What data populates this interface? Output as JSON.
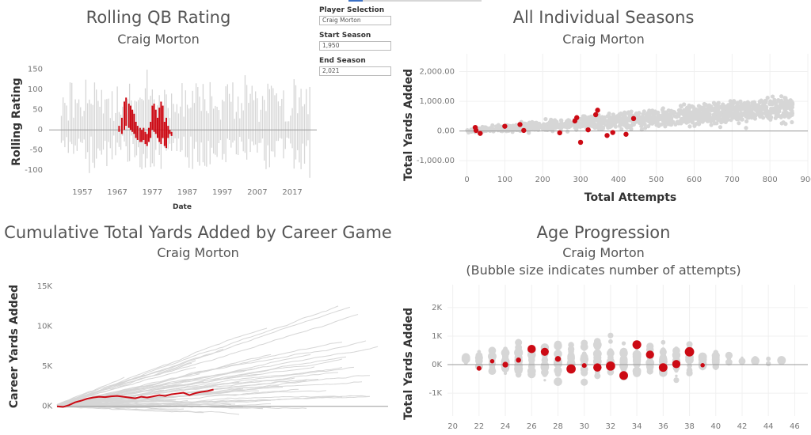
{
  "controls": {
    "player_label": "Player Selection",
    "player_value": "Craig Morton",
    "start_label": "Start Season",
    "start_value": "1,950",
    "end_label": "End Season",
    "end_value": "2,021"
  },
  "colors": {
    "highlight": "#cc0a14",
    "background_series": "#d6d6d6",
    "zero_line": "#999999"
  },
  "chart_data": [
    {
      "type": "line",
      "title": "Rolling QB Rating",
      "subtitle": "Craig Morton",
      "xlabel": "Date",
      "ylabel": "Rolling Rating",
      "xticks": [
        "1957",
        "1967",
        "1977",
        "1987",
        "1997",
        "2007",
        "2017"
      ],
      "yticks": [
        "150",
        "100",
        "50",
        "0",
        "-50",
        "-100"
      ],
      "ylim": [
        -125,
        165
      ],
      "xlim": [
        1947.5,
        2024
      ],
      "grid": false,
      "highlight_series": {
        "name": "Craig Morton",
        "x": [
          1967.5,
          1968.3,
          1969,
          1969.5,
          1970.3,
          1970.8,
          1971.3,
          1971.8,
          1972.3,
          1972.8,
          1973.5,
          1974,
          1974.5,
          1975,
          1975.5,
          1976,
          1976.5,
          1977,
          1977.5,
          1978,
          1978.5,
          1979,
          1979.5,
          1980,
          1980.5,
          1981,
          1981.5,
          1982,
          1982.5
        ],
        "high": [
          10,
          30,
          70,
          80,
          65,
          60,
          50,
          40,
          20,
          10,
          5,
          0,
          5,
          -5,
          -10,
          5,
          20,
          60,
          65,
          50,
          30,
          55,
          70,
          60,
          20,
          30,
          10,
          0,
          -5
        ],
        "low": [
          -5,
          -10,
          0,
          10,
          5,
          0,
          -5,
          -10,
          -20,
          -25,
          -30,
          -30,
          -25,
          -35,
          -40,
          -30,
          -20,
          0,
          -5,
          -10,
          -20,
          -30,
          -35,
          -20,
          -40,
          -45,
          -20,
          -10,
          -15
        ]
      }
    },
    {
      "type": "scatter",
      "title": "All Individual Seasons",
      "subtitle": "Craig Morton",
      "xlabel": "Total Attempts",
      "ylabel": "Total Yards Added",
      "xticks": [
        0,
        100,
        200,
        300,
        400,
        500,
        600,
        700,
        800,
        900
      ],
      "yticks": [
        "2,000.00",
        "1,000.00",
        "0.00",
        "-1,000.00"
      ],
      "xlim": [
        -20,
        900
      ],
      "ylim": [
        -1500,
        2600
      ],
      "grid": true,
      "highlight_series": {
        "name": "Craig Morton",
        "x": [
          22,
          24,
          35,
          100,
          140,
          150,
          245,
          285,
          290,
          300,
          320,
          340,
          345,
          370,
          385,
          420,
          440
        ],
        "y": [
          120,
          20,
          -80,
          160,
          220,
          20,
          -60,
          340,
          450,
          -380,
          40,
          550,
          700,
          -150,
          -50,
          -110,
          420
        ]
      }
    },
    {
      "type": "line",
      "title": "Cumulative Total Yards Added by Career Game",
      "subtitle": "Craig Morton",
      "xlabel": "",
      "ylabel": "Career Yards Added",
      "yticks": [
        "15K",
        "10K",
        "5K",
        "0K"
      ],
      "ylim": [
        -2800,
        17000
      ],
      "grid": false,
      "highlight_series": {
        "name": "Craig Morton",
        "x": [
          0,
          8,
          16,
          24,
          32,
          40,
          48,
          56,
          64,
          72,
          80,
          88,
          96,
          104,
          112,
          120,
          128,
          136,
          144,
          152,
          160,
          168,
          176,
          184,
          192,
          200,
          208
        ],
        "y": [
          0,
          -80,
          150,
          500,
          700,
          950,
          1100,
          1200,
          1150,
          1250,
          1300,
          1200,
          1100,
          1000,
          1200,
          1100,
          1250,
          1400,
          1300,
          1500,
          1600,
          1700,
          1400,
          1650,
          1800,
          1900,
          2100
        ]
      }
    },
    {
      "type": "scatter",
      "title": "Age Progression",
      "subtitle": "Craig Morton",
      "subtitle2": "(Bubble size indicates number of attempts)",
      "xlabel": "",
      "ylabel": "Total Yards Added",
      "xticks": [
        20,
        22,
        24,
        26,
        28,
        30,
        32,
        34,
        36,
        38,
        40,
        42,
        44,
        46
      ],
      "yticks": [
        "2K",
        "1K",
        "0K",
        "-1K"
      ],
      "xlim": [
        19.6,
        47
      ],
      "ylim": [
        -1800,
        2800
      ],
      "grid": true,
      "highlight_series": {
        "name": "Craig Morton",
        "x": [
          22,
          23,
          24,
          25,
          26,
          27,
          28,
          29,
          30,
          31,
          32,
          33,
          34,
          35,
          36,
          37,
          38,
          39
        ],
        "y": [
          -130,
          120,
          0,
          160,
          550,
          450,
          200,
          -150,
          -30,
          -100,
          -50,
          -380,
          700,
          350,
          -100,
          20,
          450,
          -20
        ],
        "attempts": [
          30,
          20,
          60,
          40,
          180,
          160,
          60,
          240,
          30,
          180,
          240,
          200,
          210,
          170,
          200,
          170,
          250,
          20
        ]
      }
    }
  ]
}
